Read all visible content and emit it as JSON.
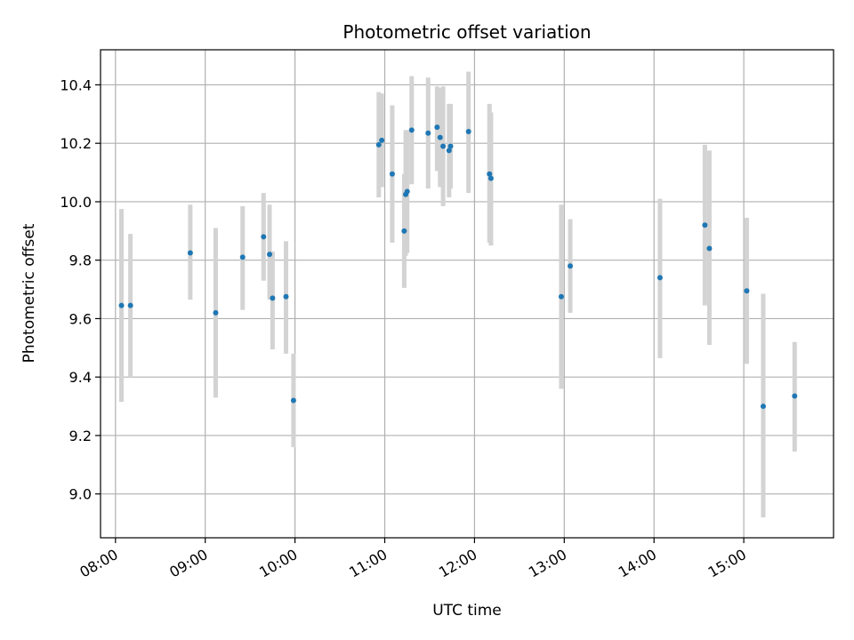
{
  "chart_data": {
    "type": "scatter",
    "title": "Photometric offset variation",
    "xlabel": "UTC time",
    "ylabel": "Photometric offset",
    "x_unit": "hours UTC",
    "xlim": [
      "07:50",
      "16:00"
    ],
    "ylim": [
      8.85,
      10.52
    ],
    "x_ticks": [
      "08:00",
      "09:00",
      "10:00",
      "11:00",
      "12:00",
      "13:00",
      "14:00",
      "15:00"
    ],
    "y_ticks": [
      9.0,
      9.2,
      9.4,
      9.6,
      9.8,
      10.0,
      10.2,
      10.4
    ],
    "y_tick_labels": [
      "9.0",
      "9.2",
      "9.4",
      "9.6",
      "9.8",
      "10.0",
      "10.2",
      "10.4"
    ],
    "grid": true,
    "colors": {
      "point": "#1f77b4",
      "errorbar": "#d3d3d3",
      "grid": "#b0b0b0"
    },
    "points": [
      {
        "time": "08:04",
        "y": 9.645,
        "lo": 9.315,
        "hi": 9.975
      },
      {
        "time": "08:10",
        "y": 9.645,
        "lo": 9.4,
        "hi": 9.89
      },
      {
        "time": "08:50",
        "y": 9.825,
        "lo": 9.665,
        "hi": 9.99
      },
      {
        "time": "09:07",
        "y": 9.62,
        "lo": 9.33,
        "hi": 9.91
      },
      {
        "time": "09:25",
        "y": 9.81,
        "lo": 9.63,
        "hi": 9.985
      },
      {
        "time": "09:39",
        "y": 9.88,
        "lo": 9.73,
        "hi": 10.03
      },
      {
        "time": "09:43",
        "y": 9.82,
        "lo": 9.665,
        "hi": 9.99
      },
      {
        "time": "09:45",
        "y": 9.67,
        "lo": 9.495,
        "hi": 9.83
      },
      {
        "time": "09:54",
        "y": 9.675,
        "lo": 9.48,
        "hi": 9.865
      },
      {
        "time": "09:59",
        "y": 9.32,
        "lo": 9.16,
        "hi": 9.48
      },
      {
        "time": "10:56",
        "y": 10.195,
        "lo": 10.015,
        "hi": 10.375
      },
      {
        "time": "10:58",
        "y": 10.21,
        "lo": 10.05,
        "hi": 10.37
      },
      {
        "time": "11:05",
        "y": 10.095,
        "lo": 9.86,
        "hi": 10.33
      },
      {
        "time": "11:13",
        "y": 9.9,
        "lo": 9.705,
        "hi": 10.095
      },
      {
        "time": "11:14",
        "y": 10.025,
        "lo": 9.815,
        "hi": 10.245
      },
      {
        "time": "11:15",
        "y": 10.035,
        "lo": 9.825,
        "hi": 10.245
      },
      {
        "time": "11:18",
        "y": 10.245,
        "lo": 10.06,
        "hi": 10.43
      },
      {
        "time": "11:29",
        "y": 10.235,
        "lo": 10.045,
        "hi": 10.425
      },
      {
        "time": "11:35",
        "y": 10.255,
        "lo": 10.105,
        "hi": 10.395
      },
      {
        "time": "11:37",
        "y": 10.22,
        "lo": 10.05,
        "hi": 10.39
      },
      {
        "time": "11:39",
        "y": 10.19,
        "lo": 9.985,
        "hi": 10.395
      },
      {
        "time": "11:43",
        "y": 10.175,
        "lo": 10.015,
        "hi": 10.335
      },
      {
        "time": "11:44",
        "y": 10.19,
        "lo": 10.045,
        "hi": 10.335
      },
      {
        "time": "11:56",
        "y": 10.24,
        "lo": 10.03,
        "hi": 10.445
      },
      {
        "time": "12:10",
        "y": 10.095,
        "lo": 9.86,
        "hi": 10.335
      },
      {
        "time": "12:11",
        "y": 10.08,
        "lo": 9.85,
        "hi": 10.305
      },
      {
        "time": "12:58",
        "y": 9.675,
        "lo": 9.36,
        "hi": 9.99
      },
      {
        "time": "13:04",
        "y": 9.78,
        "lo": 9.62,
        "hi": 9.94
      },
      {
        "time": "14:04",
        "y": 9.74,
        "lo": 9.465,
        "hi": 10.01
      },
      {
        "time": "14:34",
        "y": 9.92,
        "lo": 9.645,
        "hi": 10.195
      },
      {
        "time": "14:37",
        "y": 9.84,
        "lo": 9.51,
        "hi": 10.175
      },
      {
        "time": "15:02",
        "y": 9.695,
        "lo": 9.445,
        "hi": 9.945
      },
      {
        "time": "15:13",
        "y": 9.3,
        "lo": 8.92,
        "hi": 9.685
      },
      {
        "time": "15:34",
        "y": 9.335,
        "lo": 9.145,
        "hi": 9.52
      }
    ]
  }
}
